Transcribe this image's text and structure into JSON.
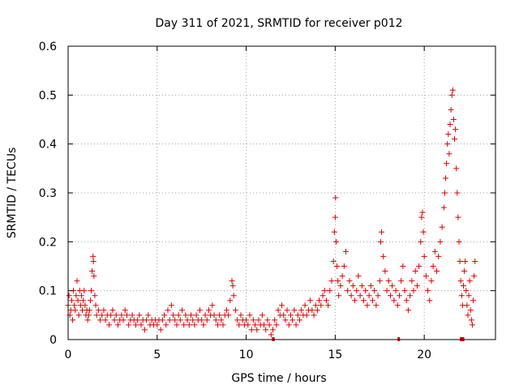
{
  "chart_data": {
    "type": "scatter",
    "title": "Day 311 of 2021, SRMTID for receiver p012",
    "xlabel": "GPS time / hours",
    "ylabel": "SRMTID / TECUs",
    "xlim": [
      0,
      24
    ],
    "ylim": [
      0,
      0.6
    ],
    "xticks": [
      0,
      5,
      10,
      15,
      20
    ],
    "xtick_labels": [
      "0",
      "5",
      "10",
      "15",
      "20"
    ],
    "yticks": [
      0,
      0.1,
      0.2,
      0.3,
      0.4,
      0.5,
      0.6
    ],
    "ytick_labels": [
      "0",
      "0.1",
      "0.2",
      "0.3",
      "0.4",
      "0.5",
      "0.6"
    ],
    "grid": true,
    "marker": "+",
    "series_color": "#e00000",
    "series": [
      {
        "name": "SRMTID",
        "points": [
          [
            0.0,
            0.07
          ],
          [
            0.05,
            0.09
          ],
          [
            0.1,
            0.05
          ],
          [
            0.15,
            0.06
          ],
          [
            0.2,
            0.08
          ],
          [
            0.25,
            0.04
          ],
          [
            0.3,
            0.1
          ],
          [
            0.35,
            0.07
          ],
          [
            0.4,
            0.06
          ],
          [
            0.45,
            0.09
          ],
          [
            0.5,
            0.12
          ],
          [
            0.55,
            0.08
          ],
          [
            0.6,
            0.05
          ],
          [
            0.65,
            0.1
          ],
          [
            0.7,
            0.07
          ],
          [
            0.75,
            0.09
          ],
          [
            0.8,
            0.06
          ],
          [
            0.85,
            0.08
          ],
          [
            0.9,
            0.1
          ],
          [
            0.95,
            0.07
          ],
          [
            1.0,
            0.05
          ],
          [
            1.05,
            0.06
          ],
          [
            1.1,
            0.04
          ],
          [
            1.15,
            0.05
          ],
          [
            1.2,
            0.06
          ],
          [
            1.25,
            0.08
          ],
          [
            1.3,
            0.1
          ],
          [
            1.35,
            0.14
          ],
          [
            1.4,
            0.17
          ],
          [
            1.42,
            0.16
          ],
          [
            1.45,
            0.13
          ],
          [
            1.5,
            0.09
          ],
          [
            1.55,
            0.07
          ],
          [
            1.6,
            0.05
          ],
          [
            1.7,
            0.06
          ],
          [
            1.8,
            0.04
          ],
          [
            1.9,
            0.05
          ],
          [
            2.0,
            0.06
          ],
          [
            2.1,
            0.04
          ],
          [
            2.2,
            0.05
          ],
          [
            2.3,
            0.03
          ],
          [
            2.4,
            0.05
          ],
          [
            2.5,
            0.06
          ],
          [
            2.6,
            0.04
          ],
          [
            2.7,
            0.05
          ],
          [
            2.8,
            0.03
          ],
          [
            2.9,
            0.04
          ],
          [
            3.0,
            0.05
          ],
          [
            3.1,
            0.04
          ],
          [
            3.2,
            0.06
          ],
          [
            3.3,
            0.05
          ],
          [
            3.4,
            0.03
          ],
          [
            3.5,
            0.04
          ],
          [
            3.6,
            0.05
          ],
          [
            3.7,
            0.04
          ],
          [
            3.8,
            0.03
          ],
          [
            3.9,
            0.04
          ],
          [
            4.0,
            0.05
          ],
          [
            4.1,
            0.03
          ],
          [
            4.2,
            0.04
          ],
          [
            4.3,
            0.02
          ],
          [
            4.4,
            0.04
          ],
          [
            4.5,
            0.05
          ],
          [
            4.6,
            0.03
          ],
          [
            4.7,
            0.04
          ],
          [
            4.8,
            0.03
          ],
          [
            4.9,
            0.04
          ],
          [
            5.0,
            0.03
          ],
          [
            5.1,
            0.04
          ],
          [
            5.2,
            0.02
          ],
          [
            5.3,
            0.04
          ],
          [
            5.4,
            0.05
          ],
          [
            5.5,
            0.03
          ],
          [
            5.6,
            0.06
          ],
          [
            5.7,
            0.04
          ],
          [
            5.8,
            0.07
          ],
          [
            5.9,
            0.05
          ],
          [
            6.0,
            0.04
          ],
          [
            6.1,
            0.03
          ],
          [
            6.2,
            0.05
          ],
          [
            6.3,
            0.04
          ],
          [
            6.4,
            0.06
          ],
          [
            6.5,
            0.03
          ],
          [
            6.6,
            0.05
          ],
          [
            6.7,
            0.04
          ],
          [
            6.8,
            0.03
          ],
          [
            6.9,
            0.05
          ],
          [
            7.0,
            0.04
          ],
          [
            7.1,
            0.03
          ],
          [
            7.2,
            0.05
          ],
          [
            7.3,
            0.04
          ],
          [
            7.4,
            0.06
          ],
          [
            7.5,
            0.04
          ],
          [
            7.6,
            0.03
          ],
          [
            7.7,
            0.05
          ],
          [
            7.8,
            0.04
          ],
          [
            7.9,
            0.06
          ],
          [
            8.0,
            0.05
          ],
          [
            8.1,
            0.07
          ],
          [
            8.2,
            0.05
          ],
          [
            8.3,
            0.04
          ],
          [
            8.4,
            0.03
          ],
          [
            8.5,
            0.05
          ],
          [
            8.6,
            0.04
          ],
          [
            8.7,
            0.03
          ],
          [
            8.8,
            0.05
          ],
          [
            8.9,
            0.06
          ],
          [
            9.0,
            0.05
          ],
          [
            9.1,
            0.08
          ],
          [
            9.2,
            0.12
          ],
          [
            9.25,
            0.11
          ],
          [
            9.3,
            0.09
          ],
          [
            9.4,
            0.06
          ],
          [
            9.5,
            0.04
          ],
          [
            9.6,
            0.03
          ],
          [
            9.7,
            0.05
          ],
          [
            9.8,
            0.04
          ],
          [
            9.9,
            0.03
          ],
          [
            10.0,
            0.04
          ],
          [
            10.1,
            0.03
          ],
          [
            10.2,
            0.05
          ],
          [
            10.3,
            0.02
          ],
          [
            10.4,
            0.04
          ],
          [
            10.5,
            0.03
          ],
          [
            10.6,
            0.02
          ],
          [
            10.7,
            0.04
          ],
          [
            10.8,
            0.03
          ],
          [
            10.9,
            0.05
          ],
          [
            11.0,
            0.03
          ],
          [
            11.1,
            0.02
          ],
          [
            11.2,
            0.04
          ],
          [
            11.3,
            0.03
          ],
          [
            11.4,
            0.01
          ],
          [
            11.5,
            0.02
          ],
          [
            11.6,
            0.04
          ],
          [
            11.7,
            0.03
          ],
          [
            11.8,
            0.06
          ],
          [
            11.9,
            0.05
          ],
          [
            12.0,
            0.07
          ],
          [
            12.1,
            0.05
          ],
          [
            12.2,
            0.04
          ],
          [
            12.3,
            0.06
          ],
          [
            12.4,
            0.03
          ],
          [
            12.5,
            0.05
          ],
          [
            12.6,
            0.04
          ],
          [
            12.7,
            0.06
          ],
          [
            12.8,
            0.03
          ],
          [
            12.9,
            0.05
          ],
          [
            13.0,
            0.04
          ],
          [
            13.1,
            0.06
          ],
          [
            13.2,
            0.05
          ],
          [
            13.3,
            0.07
          ],
          [
            13.4,
            0.05
          ],
          [
            13.5,
            0.06
          ],
          [
            13.6,
            0.08
          ],
          [
            13.7,
            0.06
          ],
          [
            13.8,
            0.05
          ],
          [
            13.9,
            0.07
          ],
          [
            14.0,
            0.06
          ],
          [
            14.1,
            0.08
          ],
          [
            14.2,
            0.07
          ],
          [
            14.3,
            0.09
          ],
          [
            14.4,
            0.1
          ],
          [
            14.5,
            0.08
          ],
          [
            14.6,
            0.07
          ],
          [
            14.7,
            0.1
          ],
          [
            14.8,
            0.12
          ],
          [
            14.9,
            0.16
          ],
          [
            14.95,
            0.22
          ],
          [
            15.0,
            0.25
          ],
          [
            15.02,
            0.29
          ],
          [
            15.05,
            0.2
          ],
          [
            15.1,
            0.15
          ],
          [
            15.15,
            0.12
          ],
          [
            15.2,
            0.09
          ],
          [
            15.3,
            0.11
          ],
          [
            15.4,
            0.13
          ],
          [
            15.5,
            0.15
          ],
          [
            15.6,
            0.18
          ],
          [
            15.7,
            0.1
          ],
          [
            15.8,
            0.12
          ],
          [
            15.9,
            0.09
          ],
          [
            16.0,
            0.11
          ],
          [
            16.1,
            0.08
          ],
          [
            16.2,
            0.1
          ],
          [
            16.3,
            0.13
          ],
          [
            16.4,
            0.09
          ],
          [
            16.5,
            0.11
          ],
          [
            16.6,
            0.08
          ],
          [
            16.7,
            0.1
          ],
          [
            16.8,
            0.07
          ],
          [
            16.9,
            0.09
          ],
          [
            17.0,
            0.11
          ],
          [
            17.1,
            0.08
          ],
          [
            17.2,
            0.1
          ],
          [
            17.3,
            0.07
          ],
          [
            17.4,
            0.09
          ],
          [
            17.5,
            0.12
          ],
          [
            17.55,
            0.2
          ],
          [
            17.6,
            0.22
          ],
          [
            17.7,
            0.17
          ],
          [
            17.8,
            0.14
          ],
          [
            17.9,
            0.1
          ],
          [
            18.0,
            0.12
          ],
          [
            18.1,
            0.09
          ],
          [
            18.2,
            0.11
          ],
          [
            18.3,
            0.08
          ],
          [
            18.4,
            0.1
          ],
          [
            18.5,
            0.07
          ],
          [
            18.6,
            0.09
          ],
          [
            18.7,
            0.12
          ],
          [
            18.8,
            0.15
          ],
          [
            18.9,
            0.1
          ],
          [
            19.0,
            0.08
          ],
          [
            19.1,
            0.06
          ],
          [
            19.2,
            0.09
          ],
          [
            19.3,
            0.12
          ],
          [
            19.4,
            0.1
          ],
          [
            19.5,
            0.14
          ],
          [
            19.6,
            0.11
          ],
          [
            19.7,
            0.15
          ],
          [
            19.8,
            0.2
          ],
          [
            19.85,
            0.25
          ],
          [
            19.9,
            0.26
          ],
          [
            19.95,
            0.22
          ],
          [
            20.0,
            0.17
          ],
          [
            20.1,
            0.13
          ],
          [
            20.2,
            0.1
          ],
          [
            20.3,
            0.08
          ],
          [
            20.4,
            0.12
          ],
          [
            20.5,
            0.15
          ],
          [
            20.6,
            0.18
          ],
          [
            20.7,
            0.14
          ],
          [
            20.8,
            0.17
          ],
          [
            20.9,
            0.2
          ],
          [
            21.0,
            0.23
          ],
          [
            21.1,
            0.27
          ],
          [
            21.15,
            0.3
          ],
          [
            21.2,
            0.33
          ],
          [
            21.25,
            0.36
          ],
          [
            21.3,
            0.4
          ],
          [
            21.35,
            0.42
          ],
          [
            21.4,
            0.38
          ],
          [
            21.45,
            0.44
          ],
          [
            21.5,
            0.47
          ],
          [
            21.55,
            0.5
          ],
          [
            21.6,
            0.51
          ],
          [
            21.65,
            0.45
          ],
          [
            21.7,
            0.41
          ],
          [
            21.75,
            0.43
          ],
          [
            21.8,
            0.35
          ],
          [
            21.85,
            0.3
          ],
          [
            21.9,
            0.25
          ],
          [
            21.95,
            0.2
          ],
          [
            22.0,
            0.16
          ],
          [
            22.05,
            0.12
          ],
          [
            22.1,
            0.09
          ],
          [
            22.15,
            0.07
          ],
          [
            22.2,
            0.11
          ],
          [
            22.25,
            0.14
          ],
          [
            22.3,
            0.16
          ],
          [
            22.35,
            0.1
          ],
          [
            22.4,
            0.07
          ],
          [
            22.45,
            0.05
          ],
          [
            22.5,
            0.09
          ],
          [
            22.55,
            0.12
          ],
          [
            22.6,
            0.06
          ],
          [
            22.65,
            0.04
          ],
          [
            22.7,
            0.03
          ],
          [
            22.75,
            0.08
          ],
          [
            22.8,
            0.13
          ],
          [
            22.85,
            0.16
          ]
        ]
      }
    ],
    "gap_markers": [
      {
        "x_start": 11.45,
        "x_end": 11.6
      },
      {
        "x_start": 18.5,
        "x_end": 18.6
      },
      {
        "x_start": 22.0,
        "x_end": 22.25
      }
    ]
  }
}
